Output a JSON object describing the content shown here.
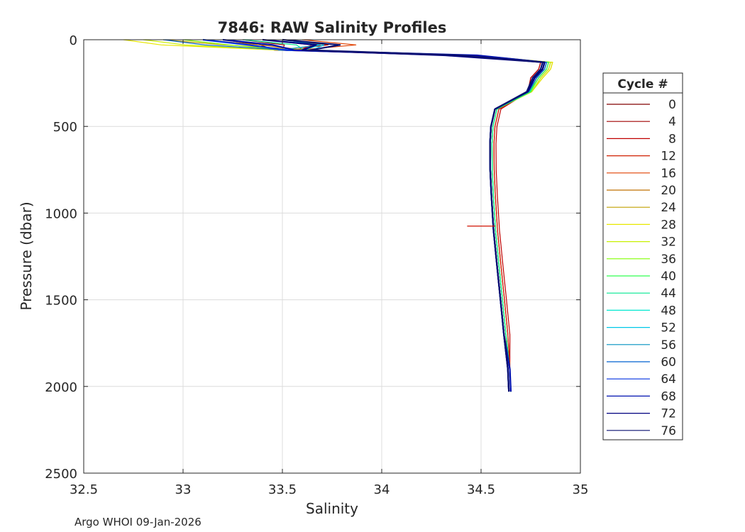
{
  "chart_data": {
    "type": "line",
    "title": "7846: RAW Salinity Profiles",
    "xlabel": "Salinity",
    "ylabel": "Pressure (dbar)",
    "xlim": [
      32.5,
      35
    ],
    "ylim": [
      0,
      2500
    ],
    "y_reversed": true,
    "grid": true,
    "xticks": [
      32.5,
      33,
      33.5,
      34,
      34.5,
      35
    ],
    "xtick_labels": [
      "32.5",
      "33",
      "33.5",
      "34",
      "34.5",
      "35"
    ],
    "yticks": [
      0,
      500,
      1000,
      1500,
      2000,
      2500
    ],
    "ytick_labels": [
      "0",
      "500",
      "1000",
      "1500",
      "2000",
      "2500"
    ],
    "legend_title": "Cycle #",
    "legend_placement": "outside-right",
    "series": [
      {
        "name": "0",
        "color": "#800000",
        "surface_s": 33.2,
        "peak_s": 34.84,
        "min_s": 34.55,
        "deep_s": 34.65
      },
      {
        "name": "4",
        "color": "#a00000",
        "surface_s": 33.3,
        "peak_s": 34.8,
        "min_s": 34.57,
        "deep_s": 34.65
      },
      {
        "name": "8",
        "color": "#c00000",
        "surface_s": 33.5,
        "peak_s": 34.8,
        "min_s": 34.58,
        "deep_s": 34.65
      },
      {
        "name": "12",
        "color": "#d02000",
        "surface_s": 33.4,
        "peak_s": 34.81,
        "min_s": 34.57,
        "deep_s": 34.65
      },
      {
        "name": "16",
        "color": "#e04000",
        "surface_s": 33.6,
        "peak_s": 34.82,
        "min_s": 34.56,
        "deep_s": 34.64
      },
      {
        "name": "20",
        "color": "#c07000",
        "surface_s": 33.1,
        "peak_s": 34.85,
        "min_s": 34.56,
        "deep_s": 34.65
      },
      {
        "name": "24",
        "color": "#c0a000",
        "surface_s": 32.9,
        "peak_s": 34.86,
        "min_s": 34.55,
        "deep_s": 34.65
      },
      {
        "name": "28",
        "color": "#e8e800",
        "surface_s": 32.7,
        "peak_s": 34.86,
        "min_s": 34.55,
        "deep_s": 34.65
      },
      {
        "name": "32",
        "color": "#c8f000",
        "surface_s": 32.8,
        "peak_s": 34.85,
        "min_s": 34.56,
        "deep_s": 34.65
      },
      {
        "name": "36",
        "color": "#80ff00",
        "surface_s": 33.0,
        "peak_s": 34.84,
        "min_s": 34.55,
        "deep_s": 34.65
      },
      {
        "name": "40",
        "color": "#30ff50",
        "surface_s": 33.2,
        "peak_s": 34.84,
        "min_s": 34.56,
        "deep_s": 34.65
      },
      {
        "name": "44",
        "color": "#00e890",
        "surface_s": 33.3,
        "peak_s": 34.83,
        "min_s": 34.56,
        "deep_s": 34.65
      },
      {
        "name": "48",
        "color": "#00e8d0",
        "surface_s": 33.4,
        "peak_s": 34.82,
        "min_s": 34.55,
        "deep_s": 34.65
      },
      {
        "name": "52",
        "color": "#00c8e8",
        "surface_s": 33.4,
        "peak_s": 34.82,
        "min_s": 34.55,
        "deep_s": 34.64
      },
      {
        "name": "56",
        "color": "#0090c0",
        "surface_s": 33.5,
        "peak_s": 34.83,
        "min_s": 34.55,
        "deep_s": 34.65
      },
      {
        "name": "60",
        "color": "#0060d0",
        "surface_s": 32.9,
        "peak_s": 34.83,
        "min_s": 34.55,
        "deep_s": 34.65
      },
      {
        "name": "64",
        "color": "#0030e0",
        "surface_s": 33.1,
        "peak_s": 34.82,
        "min_s": 34.55,
        "deep_s": 34.64
      },
      {
        "name": "68",
        "color": "#0010b0",
        "surface_s": 33.2,
        "peak_s": 34.82,
        "min_s": 34.55,
        "deep_s": 34.65
      },
      {
        "name": "72",
        "color": "#000080",
        "surface_s": 33.4,
        "peak_s": 34.82,
        "min_s": 34.55,
        "deep_s": 34.64
      },
      {
        "name": "76",
        "color": "#0a1070",
        "surface_s": 33.5,
        "peak_s": 34.81,
        "min_s": 34.55,
        "deep_s": 34.64
      }
    ],
    "profile_pressures": [
      0,
      30,
      60,
      90,
      130,
      170,
      220,
      300,
      400,
      500,
      600,
      750,
      900,
      1100,
      1300,
      1500,
      1700,
      1900,
      2030
    ],
    "spike": {
      "color": "#d01000",
      "s_from": 34.43,
      "s_to": 34.57,
      "p": 1075
    }
  },
  "annotation": "Argo WHOI 09-Jan-2026"
}
